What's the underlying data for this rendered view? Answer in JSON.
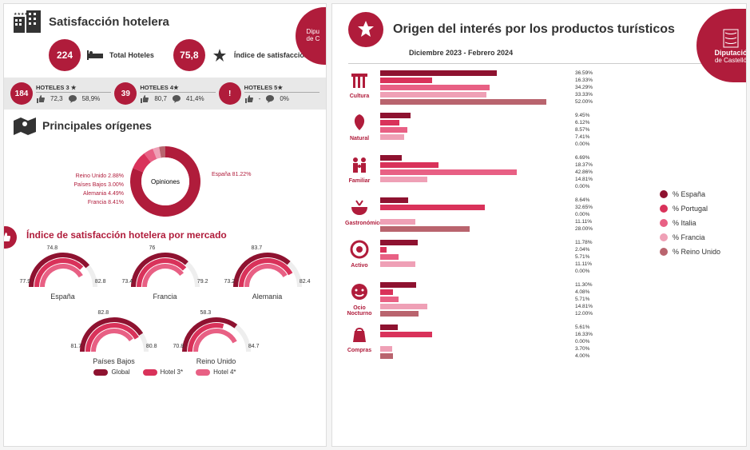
{
  "colors": {
    "primary": "#b01c3b",
    "series": [
      "#8e1230",
      "#d9325a",
      "#e86084",
      "#efa0b6",
      "#b9646e"
    ],
    "gray_band": "#e8e8e8",
    "gauge": {
      "global": "#8e1230",
      "h3": "#d9325a",
      "h4": "#e86084"
    }
  },
  "left": {
    "sat_title": "Satisfacción hotelera",
    "total_hotels": {
      "value": "224",
      "label": "Total Hoteles"
    },
    "sat_index": {
      "value": "75,8",
      "label": "Índice de satisfacción"
    },
    "groups": [
      {
        "count": "184",
        "title": "HOTELES 3 ★",
        "rating": "72,3",
        "reviews": "58,9%"
      },
      {
        "count": "39",
        "title": "HOTELES 4★",
        "rating": "80,7",
        "reviews": "41,4%"
      },
      {
        "count": "!",
        "title": "HOTELES 5★",
        "rating": "-",
        "reviews": "0%"
      }
    ],
    "side_badge": "Dipu\nde C",
    "origins_title": "Principales orígenes",
    "donut": {
      "center": "Opiniones",
      "segments": [
        {
          "label": "España 81.22%",
          "value": 81.22,
          "color": "#b01c3b"
        },
        {
          "label": "Francia 8.41%",
          "value": 8.41,
          "color": "#d9325a"
        },
        {
          "label": "Alemania 4.49%",
          "value": 4.49,
          "color": "#e86084"
        },
        {
          "label": "Países Bajos 3.00%",
          "value": 3.0,
          "color": "#efa0b6"
        },
        {
          "label": "Reino Unido 2.88%",
          "value": 2.88,
          "color": "#b9646e"
        }
      ]
    },
    "index_title": "Índice de satisfacción hotelera por mercado",
    "gauges": [
      {
        "name": "España",
        "vals": {
          "global": 77.9,
          "h3": 74.8,
          "h4": 82.8
        }
      },
      {
        "name": "Francia",
        "vals": {
          "global": 73.4,
          "h3": 76,
          "h4": 79.2
        }
      },
      {
        "name": "Alemania",
        "vals": {
          "global": 73.2,
          "h3": 83.7,
          "h4": 82.4
        }
      },
      {
        "name": "Países Bajos",
        "vals": {
          "global": 81.7,
          "h3": 82.8,
          "h4": 80.8
        }
      },
      {
        "name": "Reino Unido",
        "vals": {
          "global": 70.8,
          "h3": 58.3,
          "h4": 84.7
        }
      }
    ],
    "legend": [
      {
        "label": "Global",
        "color": "#8e1230"
      },
      {
        "label": "Hotel 3*",
        "color": "#d9325a"
      },
      {
        "label": "Hotel 4*",
        "color": "#e86084"
      }
    ]
  },
  "right": {
    "title": "Origen del interés por los productos turísticos",
    "subtitle": "Diciembre 2023 - Febrero 2024",
    "logo": {
      "l1": "Diputació",
      "l2": "de Castelló"
    },
    "max_pct": 60,
    "legend": [
      {
        "label": "% España",
        "color": "#8e1230"
      },
      {
        "label": "% Portugal",
        "color": "#d9325a"
      },
      {
        "label": "% Italia",
        "color": "#e86084"
      },
      {
        "label": "% Francia",
        "color": "#efa0b6"
      },
      {
        "label": "% Reino Unido",
        "color": "#b9646e"
      }
    ],
    "products": [
      {
        "name": "Cultura",
        "icon": "column",
        "values": [
          36.59,
          16.33,
          34.29,
          33.33,
          52.0
        ]
      },
      {
        "name": "Natural",
        "icon": "leaf",
        "values": [
          9.45,
          6.12,
          8.57,
          7.41,
          0.0
        ]
      },
      {
        "name": "Familiar",
        "icon": "family",
        "values": [
          6.69,
          18.37,
          42.86,
          14.81,
          0.0
        ]
      },
      {
        "name": "Gastronómico",
        "icon": "bowl",
        "values": [
          8.64,
          32.65,
          0.0,
          11.11,
          28.0
        ]
      },
      {
        "name": "Activo",
        "icon": "target",
        "values": [
          11.78,
          2.04,
          5.71,
          11.11,
          0.0
        ]
      },
      {
        "name": "Ocio Nocturno",
        "icon": "smile",
        "values": [
          11.3,
          4.08,
          5.71,
          14.81,
          12.0
        ]
      },
      {
        "name": "Compras",
        "icon": "bag",
        "values": [
          5.61,
          16.33,
          0,
          3.7,
          4.0
        ]
      }
    ]
  }
}
